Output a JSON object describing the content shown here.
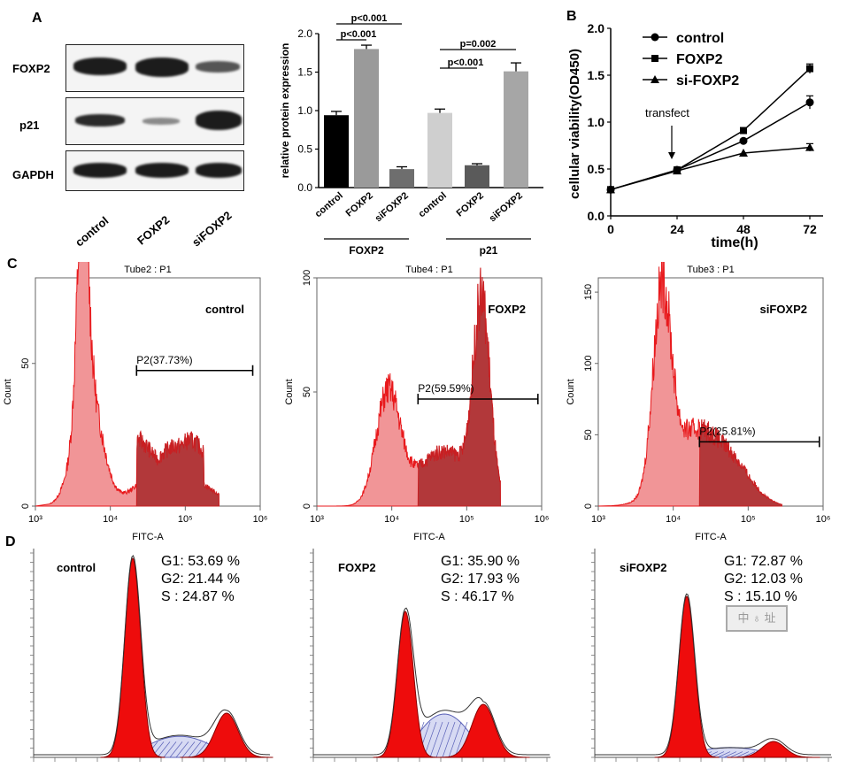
{
  "panels": {
    "A": "A",
    "B": "B",
    "C": "C",
    "D": "D"
  },
  "western_blot": {
    "rows": [
      "FOXP2",
      "p21",
      "GAPDH"
    ],
    "lanes": [
      "control",
      "FOXP2",
      "siFOXP2"
    ]
  },
  "chart_data": [
    {
      "type": "bar",
      "panel": "A",
      "title": "",
      "ylabel": "relative protein expression",
      "ylim": [
        0,
        2.0
      ],
      "yticks": [
        "0.0",
        "0.5",
        "1.0",
        "1.5",
        "2.0"
      ],
      "categories": [
        "control",
        "FOXP2",
        "siFOXP2",
        "control",
        "FOXP2",
        "siFOXP2"
      ],
      "values": [
        0.94,
        1.8,
        0.24,
        0.97,
        0.29,
        1.51
      ],
      "errors": [
        0.05,
        0.05,
        0.03,
        0.05,
        0.02,
        0.11
      ],
      "bar_colors": [
        "#000000",
        "#9a9a9a",
        "#6e6e6e",
        "#cfcfcf",
        "#5a5a5a",
        "#a6a6a6"
      ],
      "groups": [
        "FOXP2",
        "p21"
      ],
      "significance": [
        "p<0.001",
        "p<0.001",
        "p<0.001",
        "p=0.002"
      ]
    },
    {
      "type": "line",
      "panel": "B",
      "xlabel": "time(h)",
      "ylabel": "cellular viability(OD450)",
      "x": [
        0,
        24,
        48,
        72
      ],
      "xticks": [
        "0",
        "24",
        "48",
        "72"
      ],
      "ylim": [
        0,
        2.0
      ],
      "yticks": [
        "0.0",
        "0.5",
        "1.0",
        "1.5",
        "2.0"
      ],
      "series": [
        {
          "name": "control",
          "marker": "circle",
          "values": [
            0.28,
            0.49,
            0.8,
            1.21
          ],
          "errors": [
            0,
            0,
            0,
            0.07
          ]
        },
        {
          "name": "FOXP2",
          "marker": "square",
          "values": [
            0.28,
            0.49,
            0.91,
            1.57
          ],
          "errors": [
            0,
            0,
            0,
            0.05
          ]
        },
        {
          "name": "si-FOXP2",
          "marker": "triangle",
          "values": [
            0.28,
            0.48,
            0.67,
            0.73
          ],
          "errors": [
            0,
            0,
            0,
            0.04
          ]
        }
      ],
      "annotation": "transfect"
    }
  ],
  "flow": {
    "xlabel": "FITC-A",
    "ylabel": "Count",
    "xticks": [
      "10³",
      "10⁴",
      "10⁵",
      "10⁶"
    ],
    "plots": [
      {
        "tube": "Tube2 : P1",
        "label": "control",
        "gate": "P2(37.73%)",
        "yticks": [
          "0",
          "50"
        ]
      },
      {
        "tube": "Tube4 : P1",
        "label": "FOXP2",
        "gate": "P2(59.59%)",
        "yticks": [
          "0",
          "50",
          "100"
        ]
      },
      {
        "tube": "Tube3 : P1",
        "label": "siFOXP2",
        "gate": "P2(25.81%)",
        "yticks": [
          "0",
          "50",
          "100",
          "150"
        ]
      }
    ]
  },
  "cell_cycle": [
    {
      "label": "control",
      "g1": "G1:  53.69 %",
      "g2": "G2:  21.44 %",
      "s": "S   :  24.87 %"
    },
    {
      "label": "FOXP2",
      "g1": "G1:  35.90 %",
      "g2": "G2:  17.93 %",
      "s": "S   :  46.17 %"
    },
    {
      "label": "siFOXP2",
      "g1": "G1:  72.87 %",
      "g2": "G2:  12.03 %",
      "s": "S   :  15.10 %"
    }
  ]
}
